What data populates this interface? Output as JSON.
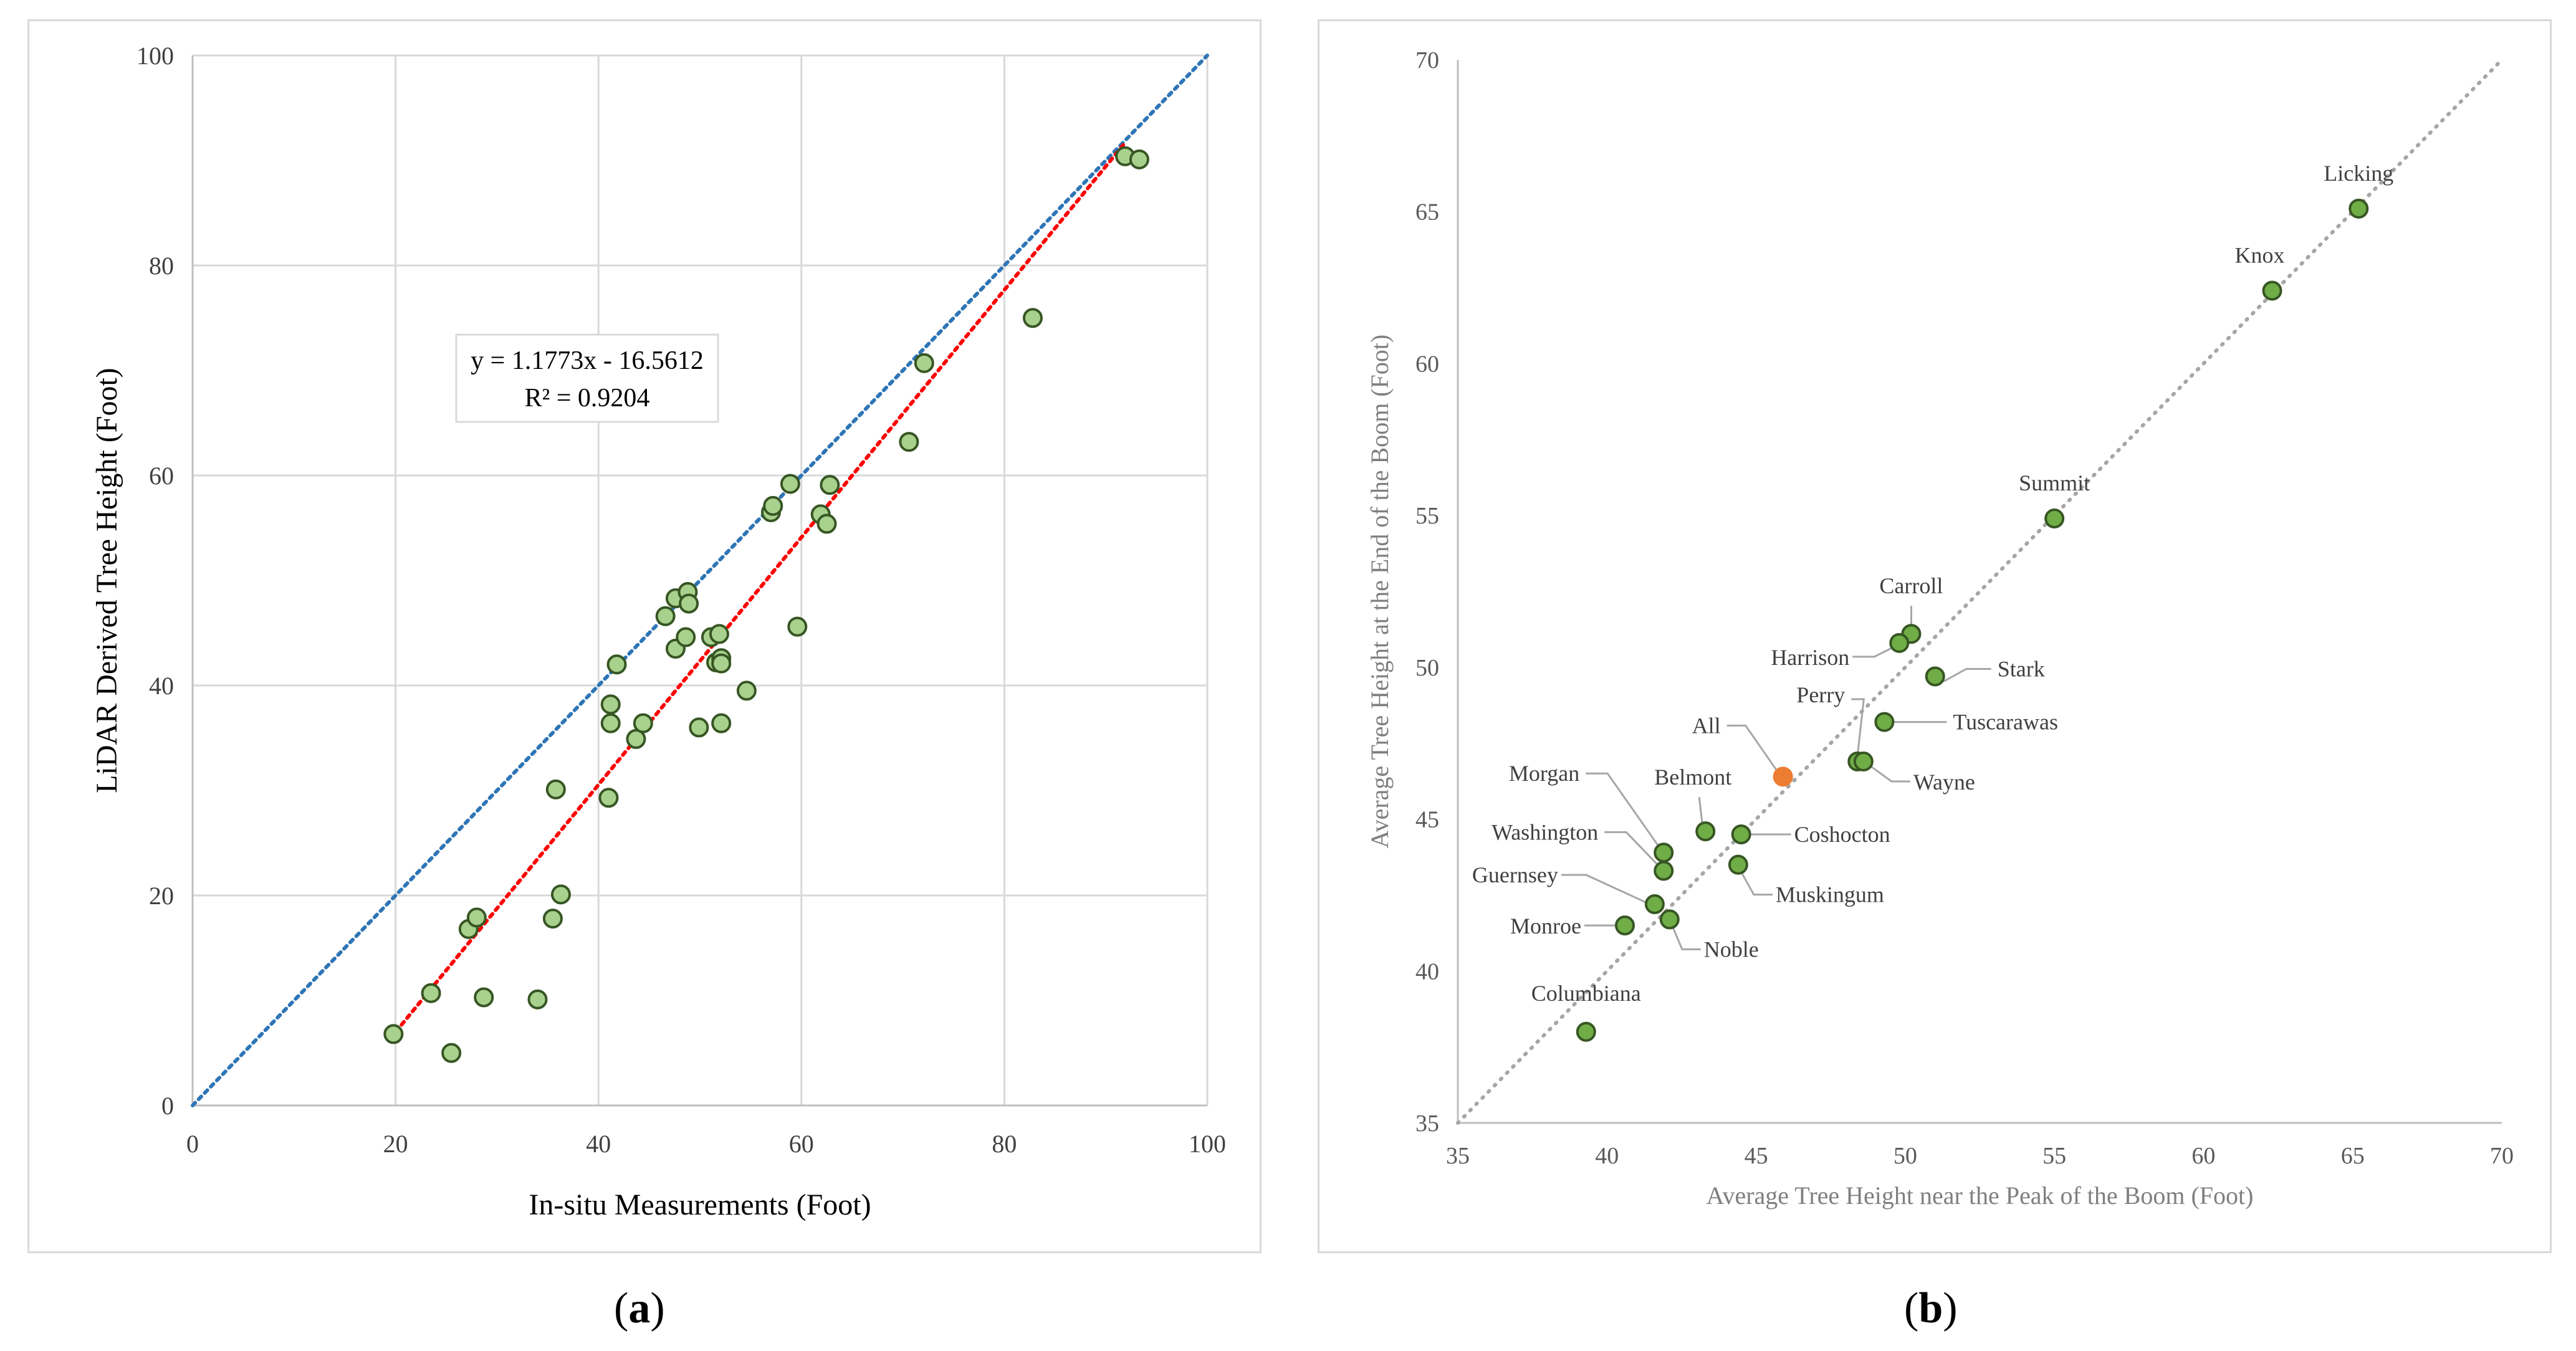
{
  "captions": {
    "a_open": "(",
    "a_letter": "a",
    "a_close": ")",
    "b_open": "(",
    "b_letter": "b",
    "b_close": ")"
  },
  "chart_data": [
    {
      "type": "scatter",
      "xlabel": "In-situ Measurements (Foot)",
      "ylabel": "LiDAR Derived Tree Height (Foot)",
      "xlim": [
        0,
        100
      ],
      "ylim": [
        0,
        100
      ],
      "xticks": [
        0,
        20,
        40,
        60,
        80,
        100
      ],
      "yticks": [
        0,
        20,
        40,
        60,
        80,
        100
      ],
      "grid": true,
      "point_color": "#a9d18e",
      "point_edge_color": "#375623",
      "equation_lines": [
        "y = 1.1773x - 16.5612",
        "R² = 0.9204"
      ],
      "one_to_one_line": {
        "color": "#2e75b6",
        "x": [
          0,
          100
        ],
        "y": [
          0,
          100
        ]
      },
      "trendline": {
        "color": "#ff0000",
        "x": [
          19.5,
          92
        ],
        "y": [
          6.4,
          91.8
        ]
      },
      "points": [
        [
          19.8,
          6.8
        ],
        [
          23.5,
          10.7
        ],
        [
          25.5,
          5.0
        ],
        [
          27.2,
          16.8
        ],
        [
          28.0,
          17.9
        ],
        [
          28.7,
          10.3
        ],
        [
          34.0,
          10.1
        ],
        [
          35.5,
          17.8
        ],
        [
          35.8,
          30.1
        ],
        [
          36.3,
          20.1
        ],
        [
          41.0,
          29.3
        ],
        [
          41.2,
          38.2
        ],
        [
          41.2,
          36.4
        ],
        [
          41.8,
          42.0
        ],
        [
          43.7,
          34.9
        ],
        [
          44.4,
          36.4
        ],
        [
          46.6,
          46.6
        ],
        [
          47.6,
          43.5
        ],
        [
          47.6,
          48.3
        ],
        [
          48.6,
          44.6
        ],
        [
          48.8,
          48.9
        ],
        [
          48.9,
          47.8
        ],
        [
          49.9,
          36.0
        ],
        [
          51.1,
          44.6
        ],
        [
          51.6,
          42.2
        ],
        [
          51.9,
          44.9
        ],
        [
          52.1,
          42.6
        ],
        [
          52.1,
          42.1
        ],
        [
          52.1,
          36.4
        ],
        [
          54.6,
          39.5
        ],
        [
          57.0,
          56.5
        ],
        [
          57.2,
          57.1
        ],
        [
          58.9,
          59.2
        ],
        [
          59.6,
          45.6
        ],
        [
          61.9,
          56.3
        ],
        [
          62.5,
          55.4
        ],
        [
          62.8,
          59.1
        ],
        [
          70.6,
          63.2
        ],
        [
          72.1,
          70.7
        ],
        [
          82.8,
          75.0
        ],
        [
          91.9,
          90.4
        ],
        [
          93.3,
          90.1
        ]
      ]
    },
    {
      "type": "scatter",
      "xlabel": "Average  Tree Height near the Peak of the Boom (Foot)",
      "ylabel": "Average Tree Height at the End of the Boom (Foot)",
      "xlim": [
        35,
        70
      ],
      "ylim": [
        35,
        70
      ],
      "xticks": [
        35,
        40,
        45,
        50,
        55,
        60,
        65,
        70
      ],
      "yticks": [
        35,
        40,
        45,
        50,
        55,
        60,
        65,
        70
      ],
      "grid": false,
      "point_color": "#70ad47",
      "point_edge_color": "#375623",
      "highlight_color": "#ed7d31",
      "reference_line": {
        "color": "#a6a6a6",
        "x": [
          35,
          70
        ],
        "y": [
          35,
          70
        ]
      },
      "points": [
        {
          "label": "Licking",
          "x": 65.2,
          "y": 65.1
        },
        {
          "label": "Knox",
          "x": 62.3,
          "y": 62.4
        },
        {
          "label": "Summit",
          "x": 55.0,
          "y": 54.9
        },
        {
          "label": "Carroll",
          "x": 50.2,
          "y": 51.1
        },
        {
          "label": "Harrison",
          "x": 49.8,
          "y": 50.8
        },
        {
          "label": "Stark",
          "x": 51.0,
          "y": 49.7
        },
        {
          "label": "Tuscarawas",
          "x": 49.3,
          "y": 48.2
        },
        {
          "label": "Perry",
          "x": 48.4,
          "y": 46.9
        },
        {
          "label": "Wayne",
          "x": 48.6,
          "y": 46.9
        },
        {
          "label": "All",
          "x": 45.9,
          "y": 46.4,
          "highlight": true
        },
        {
          "label": "Belmont",
          "x": 43.3,
          "y": 44.6
        },
        {
          "label": "Coshocton",
          "x": 44.5,
          "y": 44.5
        },
        {
          "label": "Morgan",
          "x": 41.9,
          "y": 43.9
        },
        {
          "label": "Washington",
          "x": 41.9,
          "y": 43.3
        },
        {
          "label": "Muskingum",
          "x": 44.4,
          "y": 43.5
        },
        {
          "label": "Guernsey",
          "x": 41.6,
          "y": 42.2
        },
        {
          "label": "Noble",
          "x": 42.1,
          "y": 41.7
        },
        {
          "label": "Monroe",
          "x": 40.6,
          "y": 41.5
        },
        {
          "label": "Columbiana",
          "x": 39.3,
          "y": 38.0
        }
      ]
    }
  ]
}
